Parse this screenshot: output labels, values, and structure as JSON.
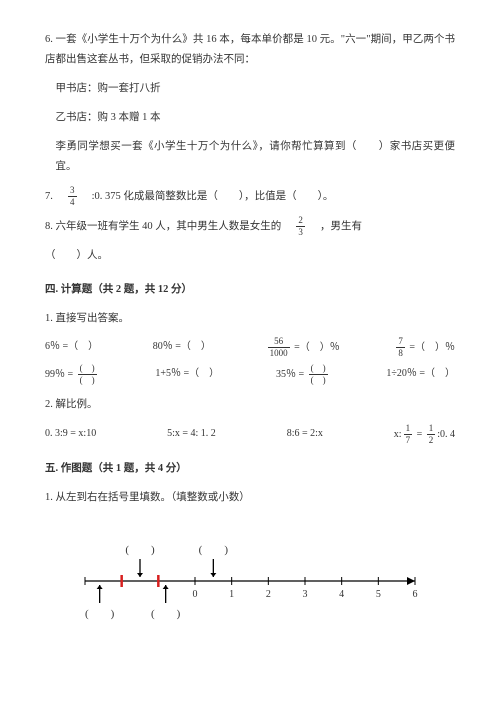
{
  "q6": {
    "text1": "6. 一套《小学生十万个为什么》共 16 本，每本单价都是 10 元。\"六一\"期间，甲乙两个书店都出售这套丛书，但采取的促销办法不同：",
    "shopA": "甲书店：购一套打八折",
    "shopB": "乙书店：购 3 本赠 1 本",
    "text2": "李勇同学想买一套《小学生十万个为什么》，请你帮忙算算到（　　）家书店买更便宜。"
  },
  "q7": {
    "pre": "7.　",
    "frac": {
      "n": "3",
      "d": "4"
    },
    "post": "　:0. 375 化成最简整数比是（　　），比值是（　　）。"
  },
  "q8": {
    "pre": "8. 六年级一班有学生 40 人，其中男生人数是女生的　",
    "frac": {
      "n": "2",
      "d": "3"
    },
    "post": "　，男生有",
    "line2": "（　　）人。"
  },
  "secCalc": "四. 计算题（共 2 题，共 12 分）",
  "calc1title": "1. 直接写出答案。",
  "calcRow1": {
    "a": "6％ =（　）",
    "b": "80％ =（　）",
    "c_pre": "",
    "c_frac": {
      "n": "56",
      "d": "1000"
    },
    "c_post": " =（　）％",
    "d_frac": {
      "n": "7",
      "d": "8"
    },
    "d_post": " =（　）％"
  },
  "calcRow2": {
    "a_pre": "99％ = ",
    "a_frac": {
      "n": "(　)",
      "d": "(　)"
    },
    "b": "1+5％ =（　）",
    "c_pre": "35％ = ",
    "c_frac": {
      "n": "(　)",
      "d": "(　)"
    },
    "d": "1÷20％ =（　）"
  },
  "calc2title": "2. 解比例。",
  "propRow": {
    "a": "0. 3:9 = x:10",
    "b": "5:x = 4: 1. 2",
    "c": "8:6 = 2:x",
    "d_pre": "x:",
    "d_f1": {
      "n": "1",
      "d": "7"
    },
    "d_mid": " = ",
    "d_f2": {
      "n": "1",
      "d": "2"
    },
    "d_post": ":0. 4"
  },
  "secDraw": "五. 作图题（共 1 题，共 4 分）",
  "draw1": "1. 从左到右在括号里填数。（填整数或小数）",
  "numline": {
    "min": -3,
    "max": 6,
    "tick_step": 1,
    "labels": [
      "0",
      "1",
      "2",
      "3",
      "4",
      "5",
      "6"
    ],
    "label_start_idx": 3,
    "top_brackets_x": [
      1.5,
      3.5
    ],
    "bot_brackets_x": [
      0.4,
      2.2
    ],
    "arrows_x": [
      0.4,
      1.5,
      2.2,
      3.5
    ],
    "red_ticks_x": [
      1,
      2
    ],
    "colors": {
      "axis": "#000000",
      "red": "#d8201f",
      "text": "#333333"
    }
  }
}
